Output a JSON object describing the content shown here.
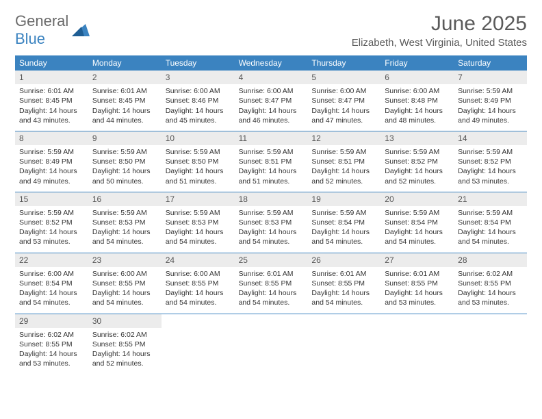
{
  "logo": {
    "part1": "General",
    "part2": "Blue"
  },
  "title": "June 2025",
  "location": "Elizabeth, West Virginia, United States",
  "colors": {
    "header_bg": "#3b83c0",
    "header_text": "#ffffff",
    "daynum_bg": "#ececec",
    "rule": "#3b83c0",
    "logo_gray": "#6a6a6a",
    "logo_blue": "#3b83c0"
  },
  "weekdays": [
    "Sunday",
    "Monday",
    "Tuesday",
    "Wednesday",
    "Thursday",
    "Friday",
    "Saturday"
  ],
  "weeks": [
    [
      {
        "d": "1",
        "sr": "6:01 AM",
        "ss": "8:45 PM",
        "dl": "14 hours and 43 minutes."
      },
      {
        "d": "2",
        "sr": "6:01 AM",
        "ss": "8:45 PM",
        "dl": "14 hours and 44 minutes."
      },
      {
        "d": "3",
        "sr": "6:00 AM",
        "ss": "8:46 PM",
        "dl": "14 hours and 45 minutes."
      },
      {
        "d": "4",
        "sr": "6:00 AM",
        "ss": "8:47 PM",
        "dl": "14 hours and 46 minutes."
      },
      {
        "d": "5",
        "sr": "6:00 AM",
        "ss": "8:47 PM",
        "dl": "14 hours and 47 minutes."
      },
      {
        "d": "6",
        "sr": "6:00 AM",
        "ss": "8:48 PM",
        "dl": "14 hours and 48 minutes."
      },
      {
        "d": "7",
        "sr": "5:59 AM",
        "ss": "8:49 PM",
        "dl": "14 hours and 49 minutes."
      }
    ],
    [
      {
        "d": "8",
        "sr": "5:59 AM",
        "ss": "8:49 PM",
        "dl": "14 hours and 49 minutes."
      },
      {
        "d": "9",
        "sr": "5:59 AM",
        "ss": "8:50 PM",
        "dl": "14 hours and 50 minutes."
      },
      {
        "d": "10",
        "sr": "5:59 AM",
        "ss": "8:50 PM",
        "dl": "14 hours and 51 minutes."
      },
      {
        "d": "11",
        "sr": "5:59 AM",
        "ss": "8:51 PM",
        "dl": "14 hours and 51 minutes."
      },
      {
        "d": "12",
        "sr": "5:59 AM",
        "ss": "8:51 PM",
        "dl": "14 hours and 52 minutes."
      },
      {
        "d": "13",
        "sr": "5:59 AM",
        "ss": "8:52 PM",
        "dl": "14 hours and 52 minutes."
      },
      {
        "d": "14",
        "sr": "5:59 AM",
        "ss": "8:52 PM",
        "dl": "14 hours and 53 minutes."
      }
    ],
    [
      {
        "d": "15",
        "sr": "5:59 AM",
        "ss": "8:52 PM",
        "dl": "14 hours and 53 minutes."
      },
      {
        "d": "16",
        "sr": "5:59 AM",
        "ss": "8:53 PM",
        "dl": "14 hours and 54 minutes."
      },
      {
        "d": "17",
        "sr": "5:59 AM",
        "ss": "8:53 PM",
        "dl": "14 hours and 54 minutes."
      },
      {
        "d": "18",
        "sr": "5:59 AM",
        "ss": "8:53 PM",
        "dl": "14 hours and 54 minutes."
      },
      {
        "d": "19",
        "sr": "5:59 AM",
        "ss": "8:54 PM",
        "dl": "14 hours and 54 minutes."
      },
      {
        "d": "20",
        "sr": "5:59 AM",
        "ss": "8:54 PM",
        "dl": "14 hours and 54 minutes."
      },
      {
        "d": "21",
        "sr": "5:59 AM",
        "ss": "8:54 PM",
        "dl": "14 hours and 54 minutes."
      }
    ],
    [
      {
        "d": "22",
        "sr": "6:00 AM",
        "ss": "8:54 PM",
        "dl": "14 hours and 54 minutes."
      },
      {
        "d": "23",
        "sr": "6:00 AM",
        "ss": "8:55 PM",
        "dl": "14 hours and 54 minutes."
      },
      {
        "d": "24",
        "sr": "6:00 AM",
        "ss": "8:55 PM",
        "dl": "14 hours and 54 minutes."
      },
      {
        "d": "25",
        "sr": "6:01 AM",
        "ss": "8:55 PM",
        "dl": "14 hours and 54 minutes."
      },
      {
        "d": "26",
        "sr": "6:01 AM",
        "ss": "8:55 PM",
        "dl": "14 hours and 54 minutes."
      },
      {
        "d": "27",
        "sr": "6:01 AM",
        "ss": "8:55 PM",
        "dl": "14 hours and 53 minutes."
      },
      {
        "d": "28",
        "sr": "6:02 AM",
        "ss": "8:55 PM",
        "dl": "14 hours and 53 minutes."
      }
    ],
    [
      {
        "d": "29",
        "sr": "6:02 AM",
        "ss": "8:55 PM",
        "dl": "14 hours and 53 minutes."
      },
      {
        "d": "30",
        "sr": "6:02 AM",
        "ss": "8:55 PM",
        "dl": "14 hours and 52 minutes."
      },
      null,
      null,
      null,
      null,
      null
    ]
  ],
  "labels": {
    "sunrise": "Sunrise:",
    "sunset": "Sunset:",
    "daylight": "Daylight:"
  }
}
